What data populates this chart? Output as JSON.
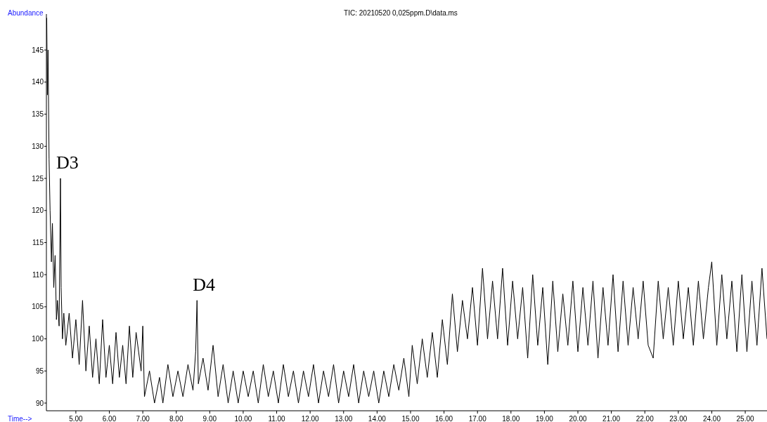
{
  "chart_data": {
    "type": "line",
    "title": "TIC: 20210520 0,025ppm.D\\data.ms",
    "xlabel": "Time-->",
    "ylabel": "Abundance",
    "xlim": [
      4.12,
      25.65
    ],
    "ylim": [
      88.8,
      150.6
    ],
    "xticks": [
      {
        "value": 5,
        "label": "5.00"
      },
      {
        "value": 6,
        "label": "6.00"
      },
      {
        "value": 7,
        "label": "7.00"
      },
      {
        "value": 8,
        "label": "8.00"
      },
      {
        "value": 9,
        "label": "9.00"
      },
      {
        "value": 10,
        "label": "10.00"
      },
      {
        "value": 11,
        "label": "11.00"
      },
      {
        "value": 12,
        "label": "12.00"
      },
      {
        "value": 13,
        "label": "13.00"
      },
      {
        "value": 14,
        "label": "14.00"
      },
      {
        "value": 15,
        "label": "15.00"
      },
      {
        "value": 16,
        "label": "16.00"
      },
      {
        "value": 17,
        "label": "17.00"
      },
      {
        "value": 18,
        "label": "18.00"
      },
      {
        "value": 19,
        "label": "19.00"
      },
      {
        "value": 20,
        "label": "20.00"
      },
      {
        "value": 21,
        "label": "21.00"
      },
      {
        "value": 22,
        "label": "22.00"
      },
      {
        "value": 23,
        "label": "23.00"
      },
      {
        "value": 24,
        "label": "24.00"
      },
      {
        "value": 25,
        "label": "25.00"
      }
    ],
    "yticks": [
      90,
      95,
      100,
      105,
      110,
      115,
      120,
      125,
      130,
      135,
      140,
      145
    ],
    "grid": false,
    "marker": "none",
    "line_style": "solid",
    "annotations": [
      {
        "text": "D3",
        "x": 4.54,
        "y": 125
      },
      {
        "text": "D4",
        "x": 8.62,
        "y": 106
      }
    ],
    "x": [
      4.13,
      4.15,
      4.17,
      4.2,
      4.23,
      4.27,
      4.3,
      4.34,
      4.38,
      4.42,
      4.45,
      4.5,
      4.54,
      4.56,
      4.6,
      4.64,
      4.7,
      4.8,
      4.9,
      5.0,
      5.1,
      5.2,
      5.3,
      5.4,
      5.5,
      5.6,
      5.7,
      5.8,
      5.9,
      6.0,
      6.1,
      6.2,
      6.3,
      6.4,
      6.5,
      6.6,
      6.7,
      6.8,
      6.95,
      7.0,
      7.05,
      7.2,
      7.35,
      7.5,
      7.6,
      7.75,
      7.9,
      8.05,
      8.2,
      8.35,
      8.5,
      8.58,
      8.62,
      8.66,
      8.8,
      8.95,
      9.1,
      9.25,
      9.4,
      9.55,
      9.7,
      9.85,
      10.0,
      10.15,
      10.3,
      10.45,
      10.6,
      10.75,
      10.9,
      11.05,
      11.2,
      11.35,
      11.5,
      11.65,
      11.8,
      11.95,
      12.1,
      12.25,
      12.4,
      12.55,
      12.7,
      12.85,
      13.0,
      13.15,
      13.3,
      13.45,
      13.6,
      13.75,
      13.9,
      14.05,
      14.2,
      14.35,
      14.5,
      14.65,
      14.8,
      14.95,
      15.05,
      15.2,
      15.35,
      15.5,
      15.65,
      15.8,
      15.95,
      16.1,
      16.25,
      16.4,
      16.55,
      16.7,
      16.85,
      17.0,
      17.15,
      17.3,
      17.45,
      17.6,
      17.75,
      17.9,
      18.05,
      18.2,
      18.35,
      18.5,
      18.65,
      18.8,
      18.95,
      19.1,
      19.25,
      19.4,
      19.55,
      19.7,
      19.85,
      20.0,
      20.15,
      20.3,
      20.45,
      20.6,
      20.75,
      20.9,
      21.05,
      21.2,
      21.35,
      21.5,
      21.65,
      21.8,
      21.95,
      22.1,
      22.25,
      22.4,
      22.55,
      22.7,
      22.85,
      23.0,
      23.15,
      23.3,
      23.45,
      23.6,
      23.75,
      23.9,
      24.0,
      24.15,
      24.3,
      24.45,
      24.6,
      24.75,
      24.9,
      25.05,
      25.2,
      25.35,
      25.5,
      25.65
    ],
    "series": [
      {
        "color": "#000000",
        "values": [
          150,
          138,
          145,
          128,
          120,
          112,
          118,
          108,
          113,
          103,
          106,
          102,
          125,
          108,
          100,
          104,
          99,
          104,
          97,
          103,
          96,
          106,
          95,
          102,
          94,
          100,
          93,
          103,
          94,
          99,
          93,
          101,
          94,
          99,
          93,
          102,
          94,
          101,
          95,
          102,
          91,
          95,
          90,
          94,
          90,
          96,
          91,
          95,
          91,
          96,
          92,
          98,
          106,
          93,
          97,
          92,
          99,
          91,
          96,
          90,
          95,
          90,
          95,
          91,
          95,
          90,
          96,
          91,
          95,
          90,
          96,
          91,
          95,
          90,
          95,
          91,
          96,
          90,
          95,
          91,
          96,
          90,
          95,
          91,
          96,
          90,
          95,
          91,
          95,
          90,
          95,
          91,
          96,
          92,
          97,
          91,
          99,
          93,
          100,
          94,
          101,
          94,
          103,
          96,
          107,
          98,
          106,
          100,
          108,
          99,
          111,
          100,
          109,
          100,
          111,
          99,
          109,
          100,
          108,
          97,
          110,
          99,
          108,
          96,
          109,
          98,
          107,
          99,
          109,
          98,
          108,
          99,
          109,
          97,
          108,
          99,
          110,
          98,
          109,
          99,
          108,
          100,
          109,
          99,
          97,
          109,
          100,
          108,
          99,
          109,
          100,
          108,
          99,
          109,
          100,
          108,
          112,
          99,
          110,
          100,
          109,
          98,
          110,
          98,
          109,
          99,
          111,
          100
        ]
      }
    ]
  }
}
